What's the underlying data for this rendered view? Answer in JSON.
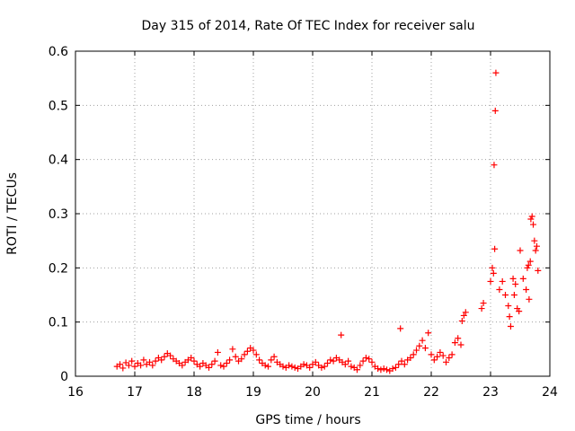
{
  "chart_data": {
    "type": "scatter",
    "title": "Day 315 of 2014, Rate Of TEC Index for receiver salu",
    "xlabel": "GPS time / hours",
    "ylabel": "ROTI / TECUs",
    "xlim": [
      16,
      24
    ],
    "ylim": [
      0,
      0.6
    ],
    "x_ticks": [
      16,
      17,
      18,
      19,
      20,
      21,
      22,
      23,
      24
    ],
    "y_ticks": [
      0,
      0.1,
      0.2,
      0.3,
      0.4,
      0.5,
      0.6
    ],
    "grid": true,
    "marker": "plus",
    "legend": "none",
    "colors": {
      "series": "#ff0000",
      "grid": "#a0a0a0",
      "axis": "#000000"
    },
    "series": [
      {
        "points": [
          [
            16.7,
            0.018
          ],
          [
            16.75,
            0.022
          ],
          [
            16.8,
            0.015
          ],
          [
            16.85,
            0.025
          ],
          [
            16.9,
            0.02
          ],
          [
            16.95,
            0.028
          ],
          [
            17.0,
            0.018
          ],
          [
            17.05,
            0.024
          ],
          [
            17.1,
            0.02
          ],
          [
            17.15,
            0.03
          ],
          [
            17.2,
            0.022
          ],
          [
            17.25,
            0.026
          ],
          [
            17.3,
            0.02
          ],
          [
            17.35,
            0.028
          ],
          [
            17.4,
            0.034
          ],
          [
            17.45,
            0.03
          ],
          [
            17.5,
            0.036
          ],
          [
            17.55,
            0.042
          ],
          [
            17.6,
            0.038
          ],
          [
            17.65,
            0.032
          ],
          [
            17.7,
            0.028
          ],
          [
            17.75,
            0.024
          ],
          [
            17.8,
            0.02
          ],
          [
            17.85,
            0.026
          ],
          [
            17.9,
            0.03
          ],
          [
            17.95,
            0.034
          ],
          [
            18.0,
            0.028
          ],
          [
            18.05,
            0.022
          ],
          [
            18.1,
            0.018
          ],
          [
            18.15,
            0.024
          ],
          [
            18.2,
            0.02
          ],
          [
            18.25,
            0.016
          ],
          [
            18.3,
            0.022
          ],
          [
            18.35,
            0.028
          ],
          [
            18.4,
            0.044
          ],
          [
            18.45,
            0.02
          ],
          [
            18.5,
            0.018
          ],
          [
            18.55,
            0.024
          ],
          [
            18.6,
            0.03
          ],
          [
            18.65,
            0.05
          ],
          [
            18.7,
            0.036
          ],
          [
            18.75,
            0.028
          ],
          [
            18.8,
            0.032
          ],
          [
            18.85,
            0.04
          ],
          [
            18.9,
            0.046
          ],
          [
            18.95,
            0.052
          ],
          [
            19.0,
            0.048
          ],
          [
            19.05,
            0.04
          ],
          [
            19.1,
            0.03
          ],
          [
            19.15,
            0.024
          ],
          [
            19.2,
            0.02
          ],
          [
            19.25,
            0.018
          ],
          [
            19.3,
            0.03
          ],
          [
            19.35,
            0.036
          ],
          [
            19.4,
            0.026
          ],
          [
            19.45,
            0.022
          ],
          [
            19.5,
            0.018
          ],
          [
            19.55,
            0.016
          ],
          [
            19.6,
            0.02
          ],
          [
            19.65,
            0.018
          ],
          [
            19.7,
            0.016
          ],
          [
            19.75,
            0.014
          ],
          [
            19.8,
            0.018
          ],
          [
            19.85,
            0.022
          ],
          [
            19.9,
            0.02
          ],
          [
            19.95,
            0.016
          ],
          [
            20.0,
            0.022
          ],
          [
            20.05,
            0.026
          ],
          [
            20.1,
            0.02
          ],
          [
            20.15,
            0.016
          ],
          [
            20.2,
            0.018
          ],
          [
            20.25,
            0.024
          ],
          [
            20.3,
            0.03
          ],
          [
            20.35,
            0.028
          ],
          [
            20.4,
            0.034
          ],
          [
            20.45,
            0.03
          ],
          [
            20.48,
            0.076
          ],
          [
            20.5,
            0.026
          ],
          [
            20.55,
            0.022
          ],
          [
            20.6,
            0.028
          ],
          [
            20.65,
            0.018
          ],
          [
            20.7,
            0.016
          ],
          [
            20.75,
            0.012
          ],
          [
            20.8,
            0.02
          ],
          [
            20.85,
            0.028
          ],
          [
            20.9,
            0.034
          ],
          [
            20.95,
            0.032
          ],
          [
            21.0,
            0.026
          ],
          [
            21.05,
            0.018
          ],
          [
            21.1,
            0.014
          ],
          [
            21.15,
            0.012
          ],
          [
            21.2,
            0.014
          ],
          [
            21.25,
            0.012
          ],
          [
            21.3,
            0.01
          ],
          [
            21.35,
            0.014
          ],
          [
            21.4,
            0.016
          ],
          [
            21.45,
            0.022
          ],
          [
            21.48,
            0.088
          ],
          [
            21.5,
            0.028
          ],
          [
            21.55,
            0.022
          ],
          [
            21.6,
            0.03
          ],
          [
            21.65,
            0.034
          ],
          [
            21.7,
            0.04
          ],
          [
            21.75,
            0.048
          ],
          [
            21.8,
            0.056
          ],
          [
            21.85,
            0.066
          ],
          [
            21.9,
            0.052
          ],
          [
            21.95,
            0.08
          ],
          [
            22.0,
            0.04
          ],
          [
            22.05,
            0.03
          ],
          [
            22.1,
            0.036
          ],
          [
            22.15,
            0.044
          ],
          [
            22.2,
            0.038
          ],
          [
            22.25,
            0.026
          ],
          [
            22.3,
            0.034
          ],
          [
            22.35,
            0.04
          ],
          [
            22.4,
            0.062
          ],
          [
            22.45,
            0.07
          ],
          [
            22.5,
            0.058
          ],
          [
            22.52,
            0.102
          ],
          [
            22.55,
            0.112
          ],
          [
            22.58,
            0.118
          ],
          [
            22.85,
            0.125
          ],
          [
            22.88,
            0.135
          ],
          [
            23.0,
            0.175
          ],
          [
            23.03,
            0.2
          ],
          [
            23.05,
            0.19
          ],
          [
            23.07,
            0.235
          ],
          [
            23.06,
            0.39
          ],
          [
            23.08,
            0.49
          ],
          [
            23.09,
            0.56
          ],
          [
            23.15,
            0.16
          ],
          [
            23.2,
            0.175
          ],
          [
            23.25,
            0.15
          ],
          [
            23.3,
            0.13
          ],
          [
            23.32,
            0.11
          ],
          [
            23.34,
            0.092
          ],
          [
            23.38,
            0.18
          ],
          [
            23.4,
            0.15
          ],
          [
            23.42,
            0.17
          ],
          [
            23.45,
            0.125
          ],
          [
            23.48,
            0.12
          ],
          [
            23.5,
            0.232
          ],
          [
            23.55,
            0.18
          ],
          [
            23.6,
            0.16
          ],
          [
            23.62,
            0.2
          ],
          [
            23.64,
            0.205
          ],
          [
            23.65,
            0.142
          ],
          [
            23.67,
            0.212
          ],
          [
            23.68,
            0.29
          ],
          [
            23.7,
            0.295
          ],
          [
            23.72,
            0.28
          ],
          [
            23.74,
            0.25
          ],
          [
            23.76,
            0.232
          ],
          [
            23.78,
            0.24
          ],
          [
            23.8,
            0.195
          ]
        ]
      }
    ]
  }
}
